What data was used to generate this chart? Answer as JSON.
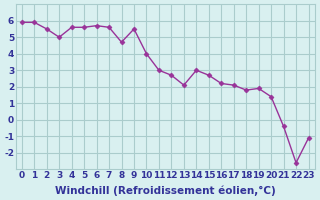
{
  "x": [
    0,
    1,
    2,
    3,
    4,
    5,
    6,
    7,
    8,
    9,
    10,
    11,
    12,
    13,
    14,
    15,
    16,
    17,
    18,
    19,
    20,
    21,
    22,
    23
  ],
  "y": [
    5.9,
    5.9,
    5.5,
    5.0,
    5.6,
    5.6,
    5.7,
    5.6,
    4.7,
    5.5,
    4.0,
    3.0,
    2.7,
    2.1,
    3.0,
    2.7,
    2.2,
    2.1,
    1.8,
    1.9,
    1.4,
    -0.4,
    -2.6,
    -1.1
  ],
  "line_color": "#993399",
  "marker_color": "#993399",
  "bg_color": "#d9f0f0",
  "grid_color": "#aacccc",
  "xlabel": "Windchill (Refroidissement éolien,°C)",
  "ylim": [
    -3,
    7
  ],
  "yticks": [
    -2,
    -1,
    0,
    1,
    2,
    3,
    4,
    5,
    6
  ],
  "xticks": [
    0,
    1,
    2,
    3,
    4,
    5,
    6,
    7,
    8,
    9,
    10,
    11,
    12,
    13,
    14,
    15,
    16,
    17,
    18,
    19,
    20,
    21,
    22,
    23
  ],
  "xtick_labels": [
    "0",
    "1",
    "2",
    "3",
    "4",
    "5",
    "6",
    "7",
    "8",
    "9",
    "10",
    "11",
    "12",
    "13",
    "14",
    "15",
    "16",
    "17",
    "18",
    "19",
    "20",
    "21",
    "22",
    "23"
  ],
  "tick_fontsize": 6.5,
  "xlabel_fontsize": 7.5,
  "label_color": "#333399"
}
